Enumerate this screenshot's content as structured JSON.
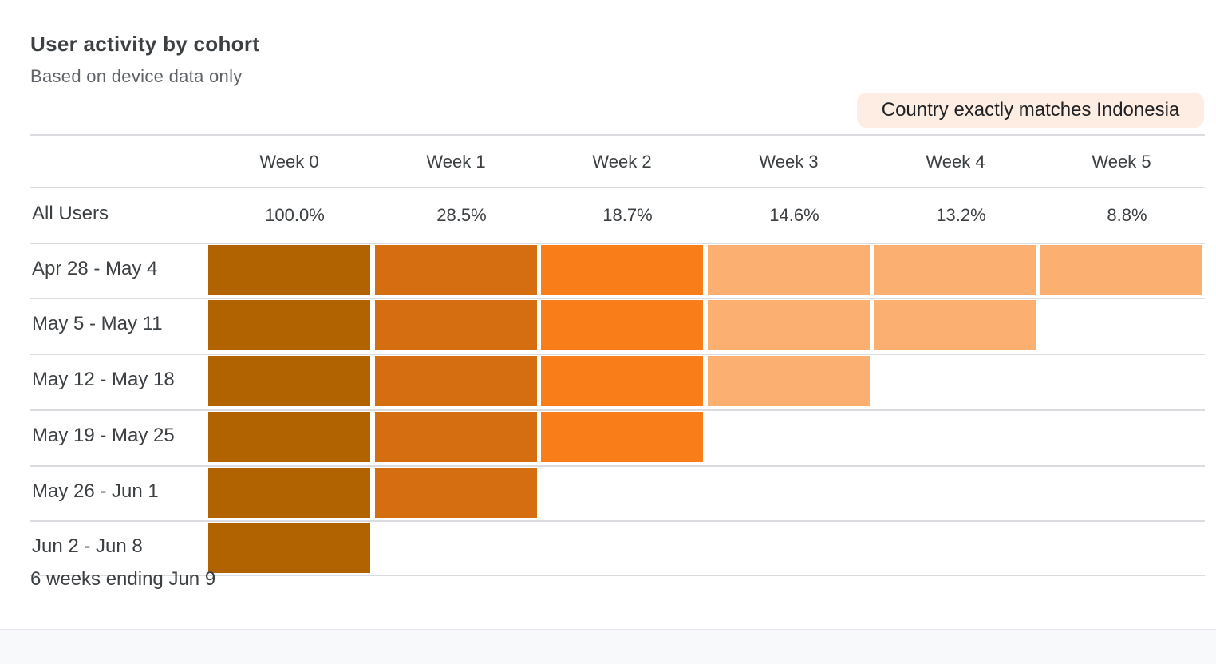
{
  "header": {
    "title": "User activity by cohort",
    "subtitle": "Based on device data only",
    "filter_chip": "Country exactly matches Indonesia"
  },
  "footnote": "6 weeks ending Jun 9",
  "chart_data": {
    "type": "heatmap",
    "title": "User activity by cohort",
    "subtitle": "Based on device data only",
    "columns": [
      "Week 0",
      "Week 1",
      "Week 2",
      "Week 3",
      "Week 4",
      "Week 5"
    ],
    "summary_row": {
      "label": "All Users",
      "values_text": [
        "100.0%",
        "28.5%",
        "18.7%",
        "14.6%",
        "13.2%",
        "8.8%"
      ],
      "values": [
        100.0,
        28.5,
        18.7,
        14.6,
        13.2,
        8.8
      ]
    },
    "rows": [
      {
        "label": "Apr 28 - May 4",
        "levels": [
          4,
          3,
          2,
          1,
          1,
          1
        ]
      },
      {
        "label": "May 5 - May 11",
        "levels": [
          4,
          3,
          2,
          1,
          1
        ]
      },
      {
        "label": "May 12 - May 18",
        "levels": [
          4,
          3,
          2,
          1
        ]
      },
      {
        "label": "May 19 - May 25",
        "levels": [
          4,
          3,
          2
        ]
      },
      {
        "label": "May 26 - Jun 1",
        "levels": [
          4,
          3
        ]
      },
      {
        "label": "Jun 2 - Jun 8",
        "levels": [
          4
        ]
      }
    ],
    "level_colors": {
      "1": "#fbb071",
      "2": "#f97e1a",
      "3": "#d46e10",
      "4": "#b06300"
    }
  }
}
